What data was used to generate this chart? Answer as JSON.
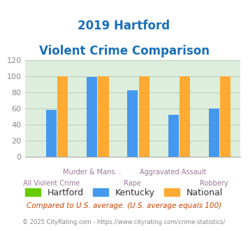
{
  "title_line1": "2019 Hartford",
  "title_line2": "Violent Crime Comparison",
  "title_color": "#1a6fba",
  "categories": [
    "All Violent Crime",
    "Murder & Mans...",
    "Rape",
    "Aggravated Assault",
    "Robbery"
  ],
  "series": {
    "Hartford": [
      0,
      0,
      0,
      0,
      0
    ],
    "Kentucky": [
      58,
      99,
      83,
      52,
      60
    ],
    "National": [
      100,
      100,
      100,
      100,
      100
    ]
  },
  "colors": {
    "Hartford": "#66cc00",
    "Kentucky": "#4499ee",
    "National": "#ffaa33"
  },
  "ylim": [
    0,
    120
  ],
  "yticks": [
    0,
    20,
    40,
    60,
    80,
    100,
    120
  ],
  "bg_color": "#ddeedd",
  "bar_width": 0.28,
  "footnote1": "Compared to U.S. average. (U.S. average equals 100)",
  "footnote2": "© 2025 CityRating.com - https://www.cityrating.com/crime-statistics/",
  "footnote1_color": "#cc4400",
  "footnote2_color": "#888888",
  "top_labels": [
    "",
    "Murder & Mans...",
    "",
    "Aggravated Assault",
    ""
  ],
  "bottom_labels": [
    "All Violent Crime",
    "",
    "Rape",
    "",
    "Robbery"
  ]
}
